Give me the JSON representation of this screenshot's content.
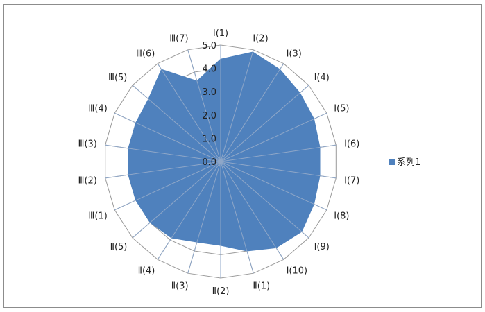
{
  "chart_data": {
    "type": "radar",
    "title": "",
    "categories": [
      "Ⅰ(1)",
      "Ⅰ(2)",
      "Ⅰ(3)",
      "Ⅰ(4)",
      "Ⅰ(5)",
      "Ⅰ(6)",
      "Ⅰ(7)",
      "Ⅰ(8)",
      "Ⅰ(9)",
      "Ⅰ(10)",
      "Ⅱ(1)",
      "Ⅱ(2)",
      "Ⅱ(3)",
      "Ⅱ(4)",
      "Ⅱ(5)",
      "Ⅲ(1)",
      "Ⅲ(2)",
      "Ⅲ(3)",
      "Ⅲ(4)",
      "Ⅲ(5)",
      "Ⅲ(6)",
      "Ⅲ(7)"
    ],
    "series": [
      {
        "name": "系列1",
        "color": "#4f81bd",
        "values": [
          4.4,
          4.9,
          4.7,
          4.5,
          4.4,
          4.3,
          4.3,
          4.4,
          4.6,
          4.4,
          4.0,
          3.6,
          3.6,
          3.9,
          4.0,
          4.0,
          4.0,
          4.0,
          4.0,
          4.1,
          4.7,
          3.6
        ]
      }
    ],
    "ticks": [
      "0.0",
      "1.0",
      "2.0",
      "3.0",
      "4.0",
      "5.0"
    ],
    "rlim": [
      0,
      5
    ],
    "grid": true,
    "legend_position": "right"
  }
}
